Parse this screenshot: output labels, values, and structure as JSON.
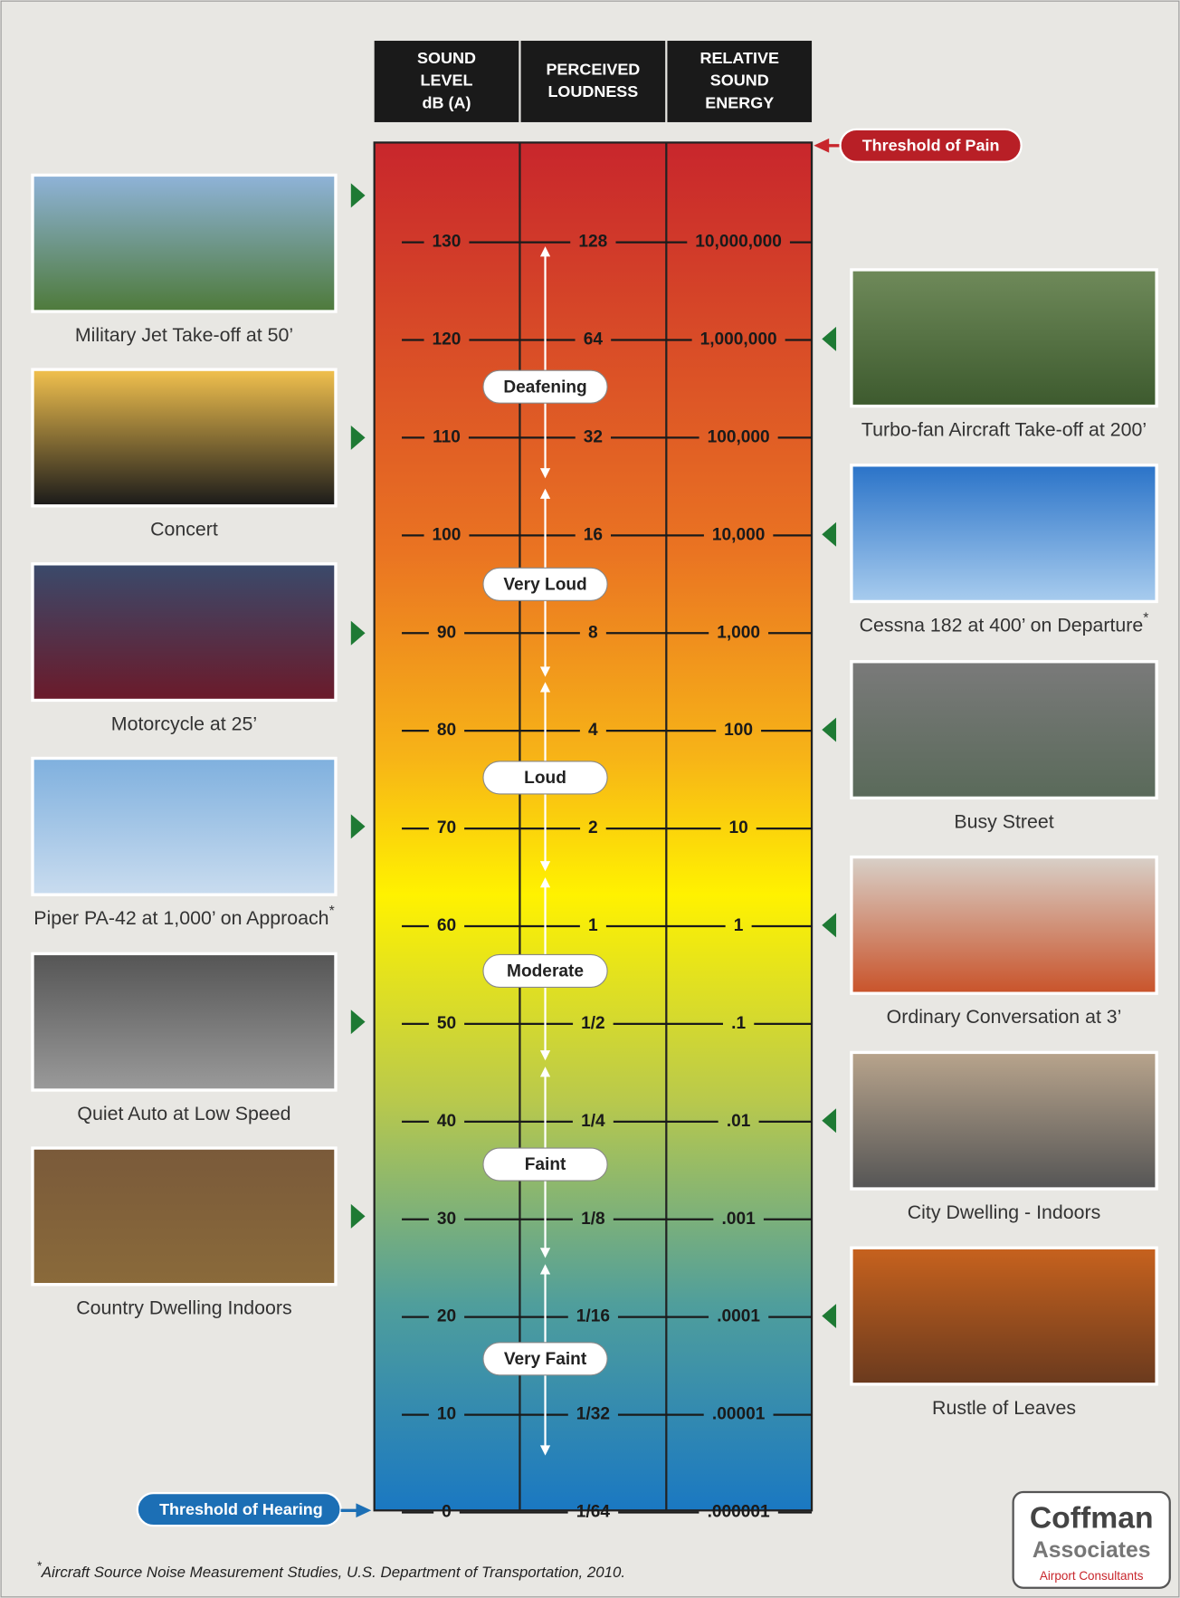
{
  "header": {
    "columns": [
      {
        "lines": [
          "SOUND",
          "LEVEL",
          "dB (A)"
        ]
      },
      {
        "lines": [
          "PERCEIVED",
          "LOUDNESS"
        ]
      },
      {
        "lines": [
          "RELATIVE",
          "SOUND",
          "ENERGY"
        ]
      }
    ]
  },
  "thresholds": {
    "pain": "Threshold of Pain",
    "hearing": "Threshold of Hearing"
  },
  "scale": {
    "rows": [
      [
        "130",
        "128",
        "10,000,000"
      ],
      [
        "120",
        "64",
        "1,000,000"
      ],
      [
        "110",
        "32",
        "100,000"
      ],
      [
        "100",
        "16",
        "10,000"
      ],
      [
        "90",
        "8",
        "1,000"
      ],
      [
        "80",
        "4",
        "100"
      ],
      [
        "70",
        "2",
        "10"
      ],
      [
        "60",
        "1",
        "1"
      ],
      [
        "50",
        "1/2",
        ".1"
      ],
      [
        "40",
        "1/4",
        ".01"
      ],
      [
        "30",
        "1/8",
        ".001"
      ],
      [
        "20",
        "1/16",
        ".0001"
      ],
      [
        "10",
        "1/32",
        ".00001"
      ],
      [
        "0",
        "1/64",
        ".000001"
      ]
    ]
  },
  "bands": [
    "Deafening",
    "Very Loud",
    "Loud",
    "Moderate",
    "Faint",
    "Very Faint"
  ],
  "examples_left": [
    {
      "label": "Military Jet Take-off at 50’"
    },
    {
      "label": "Concert"
    },
    {
      "label": "Motorcycle at 25’"
    },
    {
      "label": "Piper PA-42 at 1,000’ on Approach",
      "mark": "*"
    },
    {
      "label": "Quiet Auto at Low Speed"
    },
    {
      "label": "Country Dwelling Indoors"
    }
  ],
  "examples_right": [
    {
      "label": "Turbo-fan Aircraft Take-off at 200’"
    },
    {
      "label": "Cessna 182 at 400’ on Departure",
      "mark": "*"
    },
    {
      "label": "Busy Street"
    },
    {
      "label": "Ordinary Conversation at 3’"
    },
    {
      "label": "City Dwelling - Indoors"
    },
    {
      "label": "Rustle of Leaves"
    }
  ],
  "footnote": {
    "mark": "*",
    "text": "Aircraft Source Noise Measurement Studies, U.S. Department of Transportation, 2010."
  },
  "logo": {
    "name": "Coffman",
    "line2": "Associates",
    "tagline": "Airport Consultants"
  }
}
